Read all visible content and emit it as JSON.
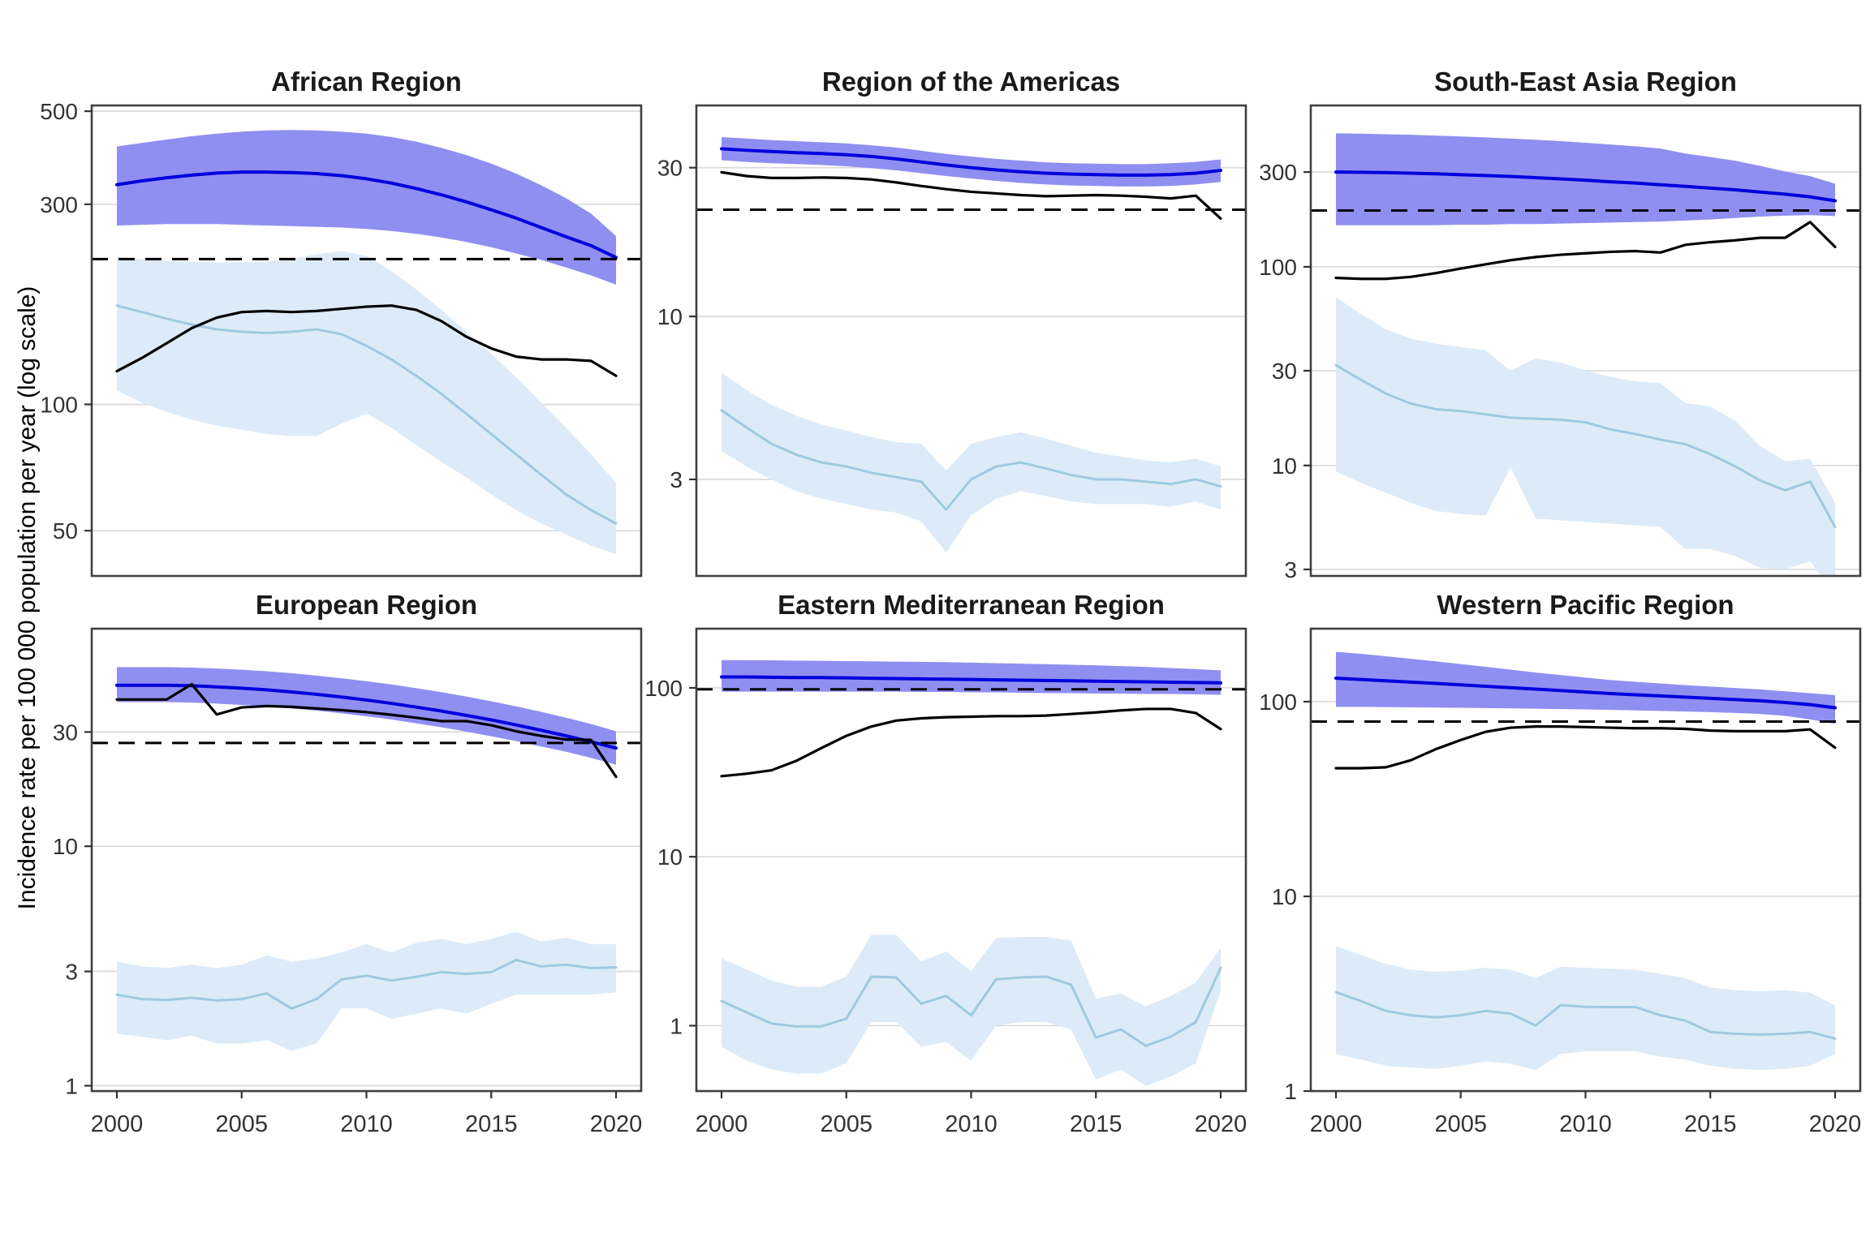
{
  "figure": {
    "ylabel": "Incidence rate per 100 000 population per year (log scale)"
  },
  "colors": {
    "estimate_line": "#0000dd",
    "estimate_ribbon": "#8f8ff2",
    "notified_line": "#000000",
    "secondary_line": "#9dcae0",
    "secondary_ribbon": "#dcebf7",
    "reference_line": "#000000",
    "gridline": "#d9d9d9",
    "panel_border": "#404040",
    "tick_text": "#333333",
    "title_text": "#1a1a1a"
  },
  "x_ticks": [
    2000,
    2005,
    2010,
    2015,
    2020
  ],
  "years": [
    2000,
    2001,
    2002,
    2003,
    2004,
    2005,
    2006,
    2007,
    2008,
    2009,
    2010,
    2011,
    2012,
    2013,
    2014,
    2015,
    2016,
    2017,
    2018,
    2019,
    2020
  ],
  "chart_data": [
    {
      "type": "line",
      "title": "African Region",
      "yticks": [
        500,
        300,
        100,
        50
      ],
      "ylim": [
        39,
        516
      ],
      "dashed_reference": 222,
      "series": [
        {
          "name": "estimated-incidence",
          "values": [
            334,
            341,
            347,
            352,
            356,
            358,
            358,
            357,
            355,
            351,
            345,
            337,
            327,
            316,
            304,
            291,
            278,
            264,
            251,
            239,
            224
          ],
          "lo": [
            267,
            268,
            269,
            269,
            269,
            268,
            267,
            266,
            265,
            264,
            262,
            259,
            255,
            250,
            244,
            237,
            229,
            221,
            212,
            203,
            193
          ],
          "hi": [
            412,
            420,
            428,
            436,
            442,
            447,
            450,
            451,
            450,
            447,
            442,
            434,
            423,
            409,
            393,
            375,
            355,
            333,
            310,
            285,
            252
          ]
        },
        {
          "name": "notifications",
          "values": [
            120,
            129,
            140,
            152,
            161,
            166,
            167,
            166,
            167,
            169,
            171,
            172,
            168,
            158,
            145,
            136,
            130,
            128,
            128,
            127,
            117
          ]
        },
        {
          "name": "secondary-rate",
          "values": [
            172,
            166,
            160,
            155,
            151,
            149,
            148,
            149,
            151,
            147,
            138,
            128,
            117,
            106,
            95,
            85,
            76,
            68,
            61,
            56,
            52
          ],
          "lo": [
            108,
            101,
            96,
            92,
            89,
            87,
            85,
            84,
            84,
            90,
            95,
            88,
            80,
            73,
            67,
            61,
            56,
            52,
            49,
            46,
            44
          ],
          "hi": [
            225,
            222,
            220,
            219,
            218,
            218,
            219,
            222,
            228,
            232,
            226,
            208,
            188,
            168,
            149,
            132,
            116,
            101,
            88,
            76,
            65
          ]
        }
      ]
    },
    {
      "type": "line",
      "title": "Region of the Americas",
      "yticks": [
        30,
        10,
        3
      ],
      "ylim": [
        1.47,
        47.5
      ],
      "dashed_reference": 22,
      "series": [
        {
          "name": "estimated-incidence",
          "values": [
            34.5,
            34.1,
            33.8,
            33.5,
            33.3,
            33.0,
            32.6,
            32.0,
            31.3,
            30.6,
            30.0,
            29.5,
            29.1,
            28.8,
            28.6,
            28.5,
            28.4,
            28.4,
            28.5,
            28.8,
            29.4
          ],
          "lo": [
            31.7,
            31.3,
            31.0,
            30.8,
            30.6,
            30.3,
            29.9,
            29.4,
            28.8,
            28.2,
            27.7,
            27.2,
            26.8,
            26.5,
            26.3,
            26.2,
            26.1,
            26.1,
            26.2,
            26.5,
            27.0
          ],
          "hi": [
            37.6,
            37.2,
            36.8,
            36.5,
            36.2,
            35.9,
            35.4,
            34.8,
            34.0,
            33.2,
            32.6,
            32.0,
            31.6,
            31.2,
            31.0,
            30.9,
            30.8,
            30.8,
            31.0,
            31.3,
            31.9
          ]
        },
        {
          "name": "notifications",
          "values": [
            29.0,
            28.2,
            27.8,
            27.8,
            27.9,
            27.8,
            27.5,
            26.9,
            26.2,
            25.6,
            25.1,
            24.8,
            24.5,
            24.3,
            24.4,
            24.5,
            24.4,
            24.2,
            23.9,
            24.4,
            20.6
          ]
        },
        {
          "name": "secondary-rate",
          "values": [
            5.0,
            4.4,
            3.9,
            3.6,
            3.4,
            3.3,
            3.15,
            3.05,
            2.95,
            2.4,
            3.0,
            3.3,
            3.4,
            3.25,
            3.1,
            3.0,
            3.0,
            2.95,
            2.9,
            3.0,
            2.85
          ],
          "lo": [
            3.7,
            3.3,
            3.0,
            2.75,
            2.6,
            2.5,
            2.4,
            2.35,
            2.2,
            1.75,
            2.3,
            2.6,
            2.75,
            2.65,
            2.55,
            2.5,
            2.5,
            2.5,
            2.45,
            2.55,
            2.4
          ],
          "hi": [
            6.6,
            5.8,
            5.2,
            4.8,
            4.5,
            4.3,
            4.1,
            3.95,
            3.9,
            3.2,
            3.9,
            4.1,
            4.25,
            4.05,
            3.85,
            3.65,
            3.55,
            3.45,
            3.4,
            3.5,
            3.3
          ]
        }
      ]
    },
    {
      "type": "line",
      "title": "South-East Asia Region",
      "yticks": [
        300,
        100,
        30,
        10,
        3
      ],
      "ylim": [
        2.78,
        649
      ],
      "dashed_reference": 192,
      "series": [
        {
          "name": "estimated-incidence",
          "values": [
            300,
            299,
            298,
            296,
            294,
            291,
            288,
            285,
            281,
            277,
            273,
            268,
            264,
            259,
            254,
            249,
            244,
            238,
            232,
            225,
            215
          ],
          "lo": [
            162,
            162,
            162,
            162,
            162,
            163,
            163,
            164,
            164,
            165,
            166,
            167,
            168,
            169,
            171,
            173,
            176,
            179,
            181,
            182,
            180
          ],
          "hi": [
            470,
            468,
            465,
            462,
            458,
            453,
            448,
            442,
            436,
            429,
            421,
            413,
            404,
            394,
            372,
            357,
            342,
            322,
            302,
            286,
            262
          ]
        },
        {
          "name": "notifications",
          "values": [
            88,
            87,
            87,
            89,
            93,
            98,
            103,
            108,
            112,
            115,
            117,
            119,
            120,
            118,
            129,
            133,
            136,
            140,
            140,
            168,
            126
          ]
        },
        {
          "name": "secondary-rate",
          "values": [
            32,
            27,
            23,
            20.5,
            19.2,
            18.8,
            18.1,
            17.4,
            17.2,
            17.0,
            16.5,
            15.2,
            14.4,
            13.5,
            12.8,
            11.4,
            9.9,
            8.4,
            7.5,
            8.3,
            4.9
          ],
          "lo": [
            9.3,
            8.2,
            7.3,
            6.5,
            5.9,
            5.7,
            5.6,
            9.8,
            5.4,
            5.3,
            5.2,
            5.1,
            5.0,
            4.9,
            3.8,
            3.8,
            3.5,
            3.05,
            3.0,
            3.3,
            2.2
          ],
          "hi": [
            70,
            58,
            48.5,
            43.5,
            41,
            39.5,
            38,
            30,
            34.5,
            33,
            30,
            28,
            26.5,
            26,
            20.6,
            19.8,
            16.8,
            12.5,
            10.5,
            10.8,
            6.5
          ]
        }
      ]
    },
    {
      "type": "line",
      "title": "European Region",
      "yticks": [
        30,
        10,
        3,
        1
      ],
      "ylim": [
        0.95,
        81
      ],
      "dashed_reference": 27,
      "series": [
        {
          "name": "estimated-incidence",
          "values": [
            47,
            47,
            47,
            46.8,
            46.3,
            45.7,
            45.0,
            44.1,
            43.1,
            42.0,
            40.8,
            39.5,
            38.1,
            36.7,
            35.2,
            33.7,
            32.1,
            30.5,
            28.9,
            27.3,
            25.7
          ],
          "lo": [
            40,
            40,
            40,
            39.8,
            39.4,
            38.9,
            38.3,
            37.6,
            36.8,
            35.9,
            34.9,
            33.8,
            32.6,
            31.4,
            30.1,
            28.8,
            27.5,
            26.1,
            24.8,
            23.4,
            21.9
          ],
          "hi": [
            56,
            56,
            56,
            55.7,
            55.2,
            54.6,
            53.8,
            52.8,
            51.6,
            50.3,
            48.9,
            47.4,
            45.7,
            44.0,
            42.2,
            40.3,
            38.4,
            36.4,
            34.4,
            32.4,
            30.2
          ]
        },
        {
          "name": "notifications",
          "values": [
            41,
            41,
            41,
            47.5,
            35.5,
            38,
            38.5,
            38.2,
            37.6,
            37,
            36.3,
            35.4,
            34.4,
            33.3,
            33.3,
            32,
            30.2,
            28.9,
            27.9,
            27.8,
            19.5
          ]
        },
        {
          "name": "secondary-rate",
          "values": [
            2.4,
            2.3,
            2.28,
            2.33,
            2.27,
            2.3,
            2.43,
            2.1,
            2.3,
            2.78,
            2.88,
            2.75,
            2.85,
            2.98,
            2.93,
            2.98,
            3.35,
            3.15,
            3.2,
            3.1,
            3.12
          ],
          "lo": [
            1.65,
            1.6,
            1.55,
            1.62,
            1.5,
            1.5,
            1.55,
            1.4,
            1.5,
            2.1,
            2.1,
            1.9,
            2.0,
            2.1,
            2.0,
            2.2,
            2.4,
            2.4,
            2.4,
            2.4,
            2.45
          ],
          "hi": [
            3.3,
            3.15,
            3.1,
            3.2,
            3.1,
            3.2,
            3.5,
            3.3,
            3.4,
            3.6,
            3.9,
            3.6,
            3.95,
            4.1,
            3.9,
            4.1,
            4.4,
            4.0,
            4.15,
            3.9,
            3.9
          ]
        }
      ]
    },
    {
      "type": "line",
      "title": "Eastern Mediterranean Region",
      "yticks": [
        100,
        10,
        1
      ],
      "ylim": [
        0.41,
        224
      ],
      "dashed_reference": 98,
      "series": [
        {
          "name": "estimated-incidence",
          "values": [
            116,
            116,
            115.5,
            115,
            115,
            114.5,
            114,
            113.5,
            113,
            112.5,
            112,
            111.5,
            111,
            110.5,
            110,
            109.5,
            109,
            108.5,
            108,
            107.5,
            107
          ],
          "lo": [
            95,
            95,
            95,
            95,
            95,
            95,
            95,
            95,
            94.5,
            94.5,
            94,
            94,
            93.5,
            93,
            93,
            92.5,
            92.5,
            92,
            92,
            91.5,
            91
          ],
          "hi": [
            146,
            146,
            145.5,
            145,
            144.5,
            144,
            143.5,
            143,
            142.5,
            142,
            141,
            140,
            139,
            138,
            137,
            136,
            134.5,
            133,
            131,
            129,
            127
          ]
        },
        {
          "name": "notifications",
          "values": [
            30,
            31,
            32.5,
            37,
            44,
            52,
            59,
            64,
            66,
            67,
            67.5,
            68,
            68,
            68.5,
            70,
            71.5,
            73.5,
            75,
            75,
            71,
            57
          ]
        },
        {
          "name": "secondary-rate",
          "values": [
            1.4,
            1.2,
            1.03,
            0.99,
            0.99,
            1.1,
            1.95,
            1.93,
            1.35,
            1.5,
            1.15,
            1.88,
            1.93,
            1.95,
            1.75,
            0.85,
            0.95,
            0.76,
            0.86,
            1.05,
            2.2
          ],
          "lo": [
            0.75,
            0.62,
            0.55,
            0.52,
            0.52,
            0.6,
            1.05,
            1.05,
            0.75,
            0.8,
            0.62,
            1.0,
            1.05,
            1.05,
            0.95,
            0.48,
            0.55,
            0.44,
            0.5,
            0.6,
            1.6
          ],
          "hi": [
            2.5,
            2.15,
            1.85,
            1.7,
            1.7,
            1.95,
            3.45,
            3.45,
            2.4,
            2.75,
            2.1,
            3.3,
            3.35,
            3.35,
            3.2,
            1.45,
            1.55,
            1.3,
            1.5,
            1.8,
            2.9
          ]
        }
      ]
    },
    {
      "type": "line",
      "title": "Western Pacific Region",
      "yticks": [
        100,
        10,
        1
      ],
      "ylim": [
        1.0,
        237
      ],
      "dashed_reference": 79,
      "series": [
        {
          "name": "estimated-incidence",
          "values": [
            132,
            130,
            128,
            126,
            124,
            122,
            120,
            118,
            116,
            114,
            112,
            110,
            108.5,
            107,
            105.5,
            104,
            102.5,
            101,
            99,
            96.5,
            93
          ],
          "lo": [
            94,
            94,
            93.8,
            93.5,
            93.2,
            93,
            92.7,
            92.4,
            92,
            91.6,
            91.2,
            90.7,
            90.2,
            89.6,
            89,
            88.3,
            87.5,
            86.5,
            84.5,
            81,
            77
          ],
          "hi": [
            180,
            176,
            171,
            166,
            161,
            156,
            151,
            146,
            141,
            137,
            133,
            129,
            126.5,
            124,
            121.5,
            119.5,
            117.5,
            115.5,
            113,
            110.5,
            108
          ]
        },
        {
          "name": "notifications",
          "values": [
            45.5,
            45.5,
            46,
            50,
            57,
            63.5,
            70,
            73.5,
            74.5,
            74.5,
            74,
            73.5,
            73,
            73,
            72.5,
            71,
            70.5,
            70.5,
            70.5,
            72,
            58
          ]
        },
        {
          "name": "secondary-rate",
          "values": [
            3.22,
            2.9,
            2.58,
            2.45,
            2.39,
            2.45,
            2.58,
            2.5,
            2.17,
            2.76,
            2.71,
            2.7,
            2.7,
            2.45,
            2.3,
            2.01,
            1.97,
            1.95,
            1.97,
            2.01,
            1.86
          ],
          "lo": [
            1.55,
            1.45,
            1.35,
            1.32,
            1.3,
            1.35,
            1.42,
            1.38,
            1.28,
            1.55,
            1.6,
            1.6,
            1.6,
            1.5,
            1.45,
            1.35,
            1.3,
            1.28,
            1.3,
            1.35,
            1.55
          ],
          "hi": [
            5.55,
            5.0,
            4.5,
            4.2,
            4.1,
            4.15,
            4.3,
            4.2,
            3.8,
            4.35,
            4.3,
            4.25,
            4.2,
            4.0,
            3.8,
            3.4,
            3.3,
            3.25,
            3.3,
            3.2,
            2.75
          ]
        }
      ]
    }
  ]
}
